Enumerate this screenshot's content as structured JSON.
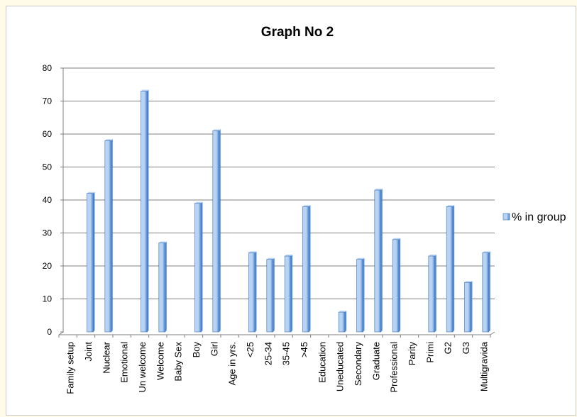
{
  "chart_data": {
    "type": "bar",
    "title": "Graph No 2",
    "xlabel": "",
    "ylabel": "",
    "ylim": [
      0,
      80
    ],
    "yticks": [
      0,
      10,
      20,
      30,
      40,
      50,
      60,
      70,
      80
    ],
    "grid": true,
    "legend_position": "right",
    "categories": [
      "Family setup",
      "Joint",
      "Nuclear",
      "Emotional",
      "Un welcome",
      "Welcome",
      "Baby Sex",
      "Boy",
      "Girl",
      "Age in yrs.",
      "<25",
      "25-34",
      "35-45",
      ">45",
      "Education",
      "Uneducated",
      "Secondary",
      "Graduate",
      "Professional",
      "Parity",
      "Primi",
      "G2",
      "G3",
      "Multigravida"
    ],
    "series": [
      {
        "name": "% in group",
        "values": [
          null,
          42,
          58,
          null,
          73,
          27,
          null,
          39,
          61,
          null,
          24,
          22,
          23,
          38,
          null,
          6,
          22,
          43,
          28,
          null,
          23,
          38,
          15,
          24
        ]
      }
    ],
    "colors": {
      "bar_light": "#b9d4f3",
      "bar_dark": "#4a84d0",
      "bar_edge": "#3a6fb8"
    }
  }
}
